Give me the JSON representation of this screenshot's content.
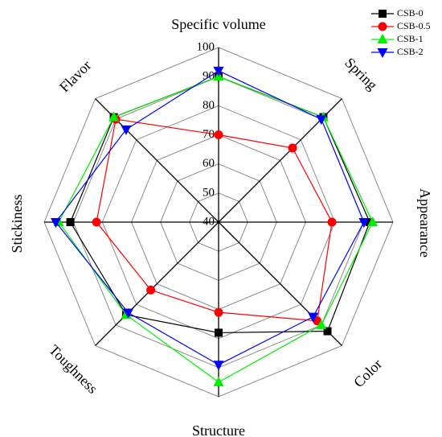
{
  "chart_data": {
    "type": "radar",
    "axes": [
      "Specific volume",
      "Spring",
      "Appearance",
      "Color",
      "Structure",
      "Toughness",
      "Stickiness",
      "Flavor"
    ],
    "ticks": [
      40,
      50,
      60,
      70,
      80,
      90,
      100
    ],
    "range": [
      40,
      100
    ],
    "grid": true,
    "legend_position": "top-right",
    "series": [
      {
        "name": "CSB-0",
        "color": "#000000",
        "marker": "square",
        "values": [
          90,
          91,
          92,
          93,
          78,
          85,
          91,
          91
        ]
      },
      {
        "name": "CSB-0.5",
        "color": "#ff0000",
        "marker": "circle",
        "values": [
          70,
          76,
          79,
          88,
          71,
          73,
          82,
          90
        ]
      },
      {
        "name": "CSB-1",
        "color": "#00ee00",
        "marker": "triangle-up",
        "values": [
          90,
          91,
          93,
          90,
          95,
          85,
          95,
          91
        ]
      },
      {
        "name": "CSB-2",
        "color": "#0000ff",
        "marker": "triangle-down",
        "values": [
          92,
          90,
          90,
          86,
          89,
          84,
          96,
          85
        ]
      }
    ]
  }
}
